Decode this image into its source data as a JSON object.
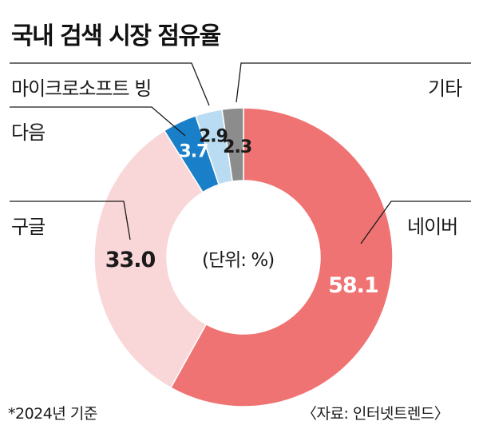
{
  "title": "국내 검색 시장 점유율",
  "unit_label": "(단위: %)",
  "footnote": "*2024년 기준",
  "source": "〈자료: 인터넷트렌드〉",
  "chart_data": {
    "type": "pie",
    "donut": true,
    "title": "국내 검색 시장 점유율",
    "unit": "%",
    "slices": [
      {
        "label": "네이버",
        "value": 58.1,
        "value_label": "58.1",
        "color": "#f07373",
        "text_color": "#ffffff"
      },
      {
        "label": "구글",
        "value": 33.0,
        "value_label": "33.0",
        "color": "#f9d6d8",
        "text_color": "#1a1a1a"
      },
      {
        "label": "다음",
        "value": 3.7,
        "value_label": "3.7",
        "color": "#1a7fc9",
        "text_color": "#ffffff"
      },
      {
        "label": "마이크로소프트 빙",
        "value": 2.9,
        "value_label": "2.9",
        "color": "#b9dcf2",
        "text_color": "#1a1a1a"
      },
      {
        "label": "기타",
        "value": 2.3,
        "value_label": "2.3",
        "color": "#8c8c8c",
        "text_color": "#1a1a1a"
      }
    ]
  }
}
